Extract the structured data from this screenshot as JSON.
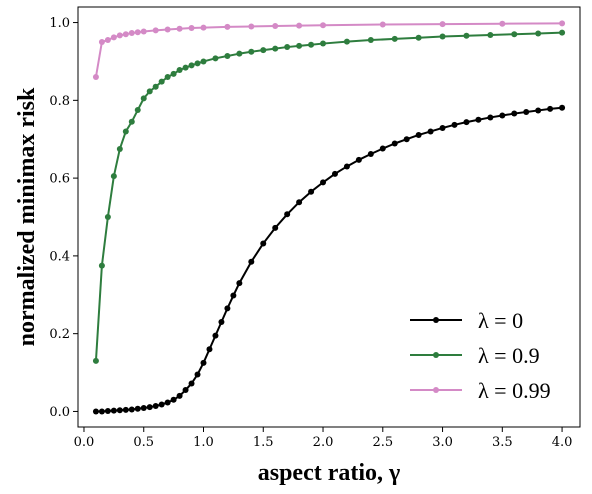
{
  "chart_data": {
    "type": "line",
    "xlabel": "aspect ratio, γ",
    "ylabel": "normalized minimax risk",
    "xlim": [
      -0.05,
      4.15
    ],
    "ylim": [
      -0.04,
      1.04
    ],
    "x_ticks": [
      0.0,
      0.5,
      1.0,
      1.5,
      2.0,
      2.5,
      3.0,
      3.5,
      4.0
    ],
    "x_tick_labels": [
      "0.0",
      "0.5",
      "1.0",
      "1.5",
      "2.0",
      "2.5",
      "3.0",
      "3.5",
      "4.0"
    ],
    "y_ticks": [
      0.0,
      0.2,
      0.4,
      0.6,
      0.8,
      1.0
    ],
    "y_tick_labels": [
      "0.0",
      "0.2",
      "0.4",
      "0.6",
      "0.8",
      "1.0"
    ],
    "grid": false,
    "legend_position": "lower-right",
    "series": [
      {
        "name": "λ = 0",
        "color": "#000000",
        "marker": "circle",
        "points": [
          [
            0.1,
            0.0
          ],
          [
            0.15,
            0.0
          ],
          [
            0.2,
            0.001
          ],
          [
            0.25,
            0.002
          ],
          [
            0.3,
            0.003
          ],
          [
            0.35,
            0.004
          ],
          [
            0.4,
            0.005
          ],
          [
            0.45,
            0.007
          ],
          [
            0.5,
            0.009
          ],
          [
            0.55,
            0.011
          ],
          [
            0.6,
            0.014
          ],
          [
            0.65,
            0.018
          ],
          [
            0.7,
            0.023
          ],
          [
            0.75,
            0.03
          ],
          [
            0.8,
            0.04
          ],
          [
            0.85,
            0.055
          ],
          [
            0.9,
            0.072
          ],
          [
            0.95,
            0.095
          ],
          [
            1.0,
            0.125
          ],
          [
            1.05,
            0.16
          ],
          [
            1.1,
            0.195
          ],
          [
            1.15,
            0.23
          ],
          [
            1.2,
            0.265
          ],
          [
            1.25,
            0.298
          ],
          [
            1.3,
            0.33
          ],
          [
            1.4,
            0.385
          ],
          [
            1.5,
            0.432
          ],
          [
            1.6,
            0.472
          ],
          [
            1.7,
            0.507
          ],
          [
            1.8,
            0.538
          ],
          [
            1.9,
            0.565
          ],
          [
            2.0,
            0.589
          ],
          [
            2.1,
            0.611
          ],
          [
            2.2,
            0.63
          ],
          [
            2.3,
            0.647
          ],
          [
            2.4,
            0.662
          ],
          [
            2.5,
            0.676
          ],
          [
            2.6,
            0.689
          ],
          [
            2.7,
            0.7
          ],
          [
            2.8,
            0.711
          ],
          [
            2.9,
            0.72
          ],
          [
            3.0,
            0.729
          ],
          [
            3.1,
            0.737
          ],
          [
            3.2,
            0.744
          ],
          [
            3.3,
            0.75
          ],
          [
            3.4,
            0.756
          ],
          [
            3.5,
            0.761
          ],
          [
            3.6,
            0.766
          ],
          [
            3.7,
            0.77
          ],
          [
            3.8,
            0.774
          ],
          [
            3.9,
            0.778
          ],
          [
            4.0,
            0.781
          ]
        ]
      },
      {
        "name": "λ = 0.9",
        "color": "#2e7d3e",
        "marker": "circle",
        "points": [
          [
            0.1,
            0.13
          ],
          [
            0.15,
            0.375
          ],
          [
            0.2,
            0.5
          ],
          [
            0.25,
            0.605
          ],
          [
            0.3,
            0.675
          ],
          [
            0.35,
            0.72
          ],
          [
            0.4,
            0.745
          ],
          [
            0.45,
            0.775
          ],
          [
            0.5,
            0.805
          ],
          [
            0.55,
            0.823
          ],
          [
            0.6,
            0.835
          ],
          [
            0.65,
            0.848
          ],
          [
            0.7,
            0.86
          ],
          [
            0.75,
            0.868
          ],
          [
            0.8,
            0.878
          ],
          [
            0.85,
            0.884
          ],
          [
            0.9,
            0.89
          ],
          [
            0.95,
            0.895
          ],
          [
            1.0,
            0.9
          ],
          [
            1.1,
            0.908
          ],
          [
            1.2,
            0.914
          ],
          [
            1.3,
            0.92
          ],
          [
            1.4,
            0.925
          ],
          [
            1.5,
            0.929
          ],
          [
            1.6,
            0.933
          ],
          [
            1.7,
            0.937
          ],
          [
            1.8,
            0.94
          ],
          [
            1.9,
            0.943
          ],
          [
            2.0,
            0.946
          ],
          [
            2.2,
            0.951
          ],
          [
            2.4,
            0.955
          ],
          [
            2.6,
            0.958
          ],
          [
            2.8,
            0.961
          ],
          [
            3.0,
            0.964
          ],
          [
            3.2,
            0.966
          ],
          [
            3.4,
            0.968
          ],
          [
            3.6,
            0.97
          ],
          [
            3.8,
            0.972
          ],
          [
            4.0,
            0.974
          ]
        ]
      },
      {
        "name": "λ = 0.99",
        "color": "#d48ac6",
        "marker": "circle",
        "points": [
          [
            0.1,
            0.86
          ],
          [
            0.15,
            0.95
          ],
          [
            0.2,
            0.955
          ],
          [
            0.25,
            0.962
          ],
          [
            0.3,
            0.967
          ],
          [
            0.35,
            0.97
          ],
          [
            0.4,
            0.973
          ],
          [
            0.45,
            0.975
          ],
          [
            0.5,
            0.977
          ],
          [
            0.6,
            0.98
          ],
          [
            0.7,
            0.982
          ],
          [
            0.8,
            0.984
          ],
          [
            0.9,
            0.986
          ],
          [
            1.0,
            0.987
          ],
          [
            1.2,
            0.989
          ],
          [
            1.4,
            0.99
          ],
          [
            1.6,
            0.991
          ],
          [
            1.8,
            0.992
          ],
          [
            2.0,
            0.993
          ],
          [
            2.5,
            0.995
          ],
          [
            3.0,
            0.996
          ],
          [
            3.5,
            0.997
          ],
          [
            4.0,
            0.998
          ]
        ]
      }
    ]
  }
}
